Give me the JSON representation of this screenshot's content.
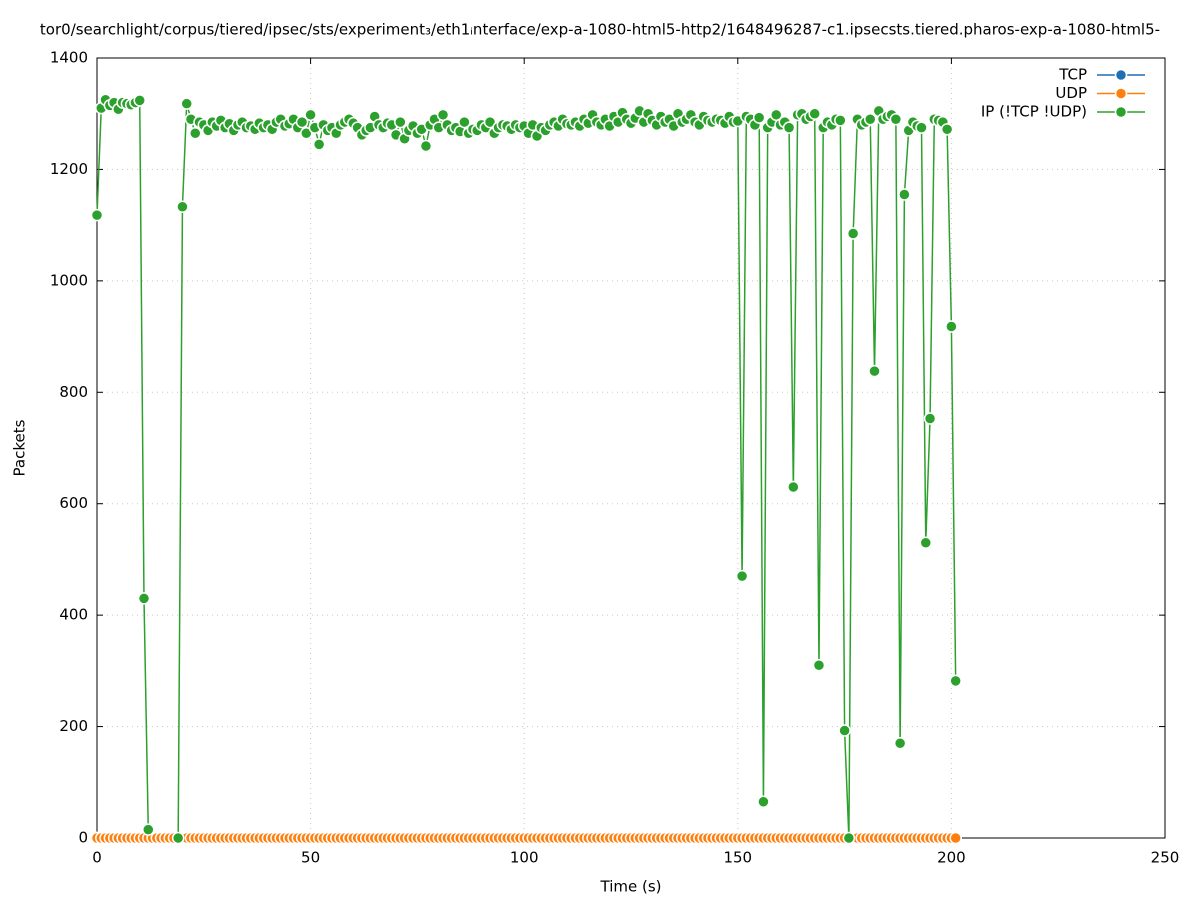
{
  "chart_data": {
    "type": "line",
    "title": "tor0/searchlight/corpus/tiered/ipsec/sts/experiment₃/eth1ᵢnterface/exp-a-1080-html5-http2/1648496287-c1.ipsecsts.tiered.pharos-exp-a-1080-html5-",
    "x_label": "Time (s)",
    "y_label": "Packets",
    "x": [
      0,
      1,
      2,
      3,
      4,
      5,
      6,
      7,
      8,
      9,
      10,
      11,
      12,
      13,
      14,
      15,
      16,
      17,
      18,
      19,
      20,
      21,
      22,
      23,
      24,
      25,
      26,
      27,
      28,
      29,
      30,
      31,
      32,
      33,
      34,
      35,
      36,
      37,
      38,
      39,
      40,
      41,
      42,
      43,
      44,
      45,
      46,
      47,
      48,
      49,
      50,
      51,
      52,
      53,
      54,
      55,
      56,
      57,
      58,
      59,
      60,
      61,
      62,
      63,
      64,
      65,
      66,
      67,
      68,
      69,
      70,
      71,
      72,
      73,
      74,
      75,
      76,
      77,
      78,
      79,
      80,
      81,
      82,
      83,
      84,
      85,
      86,
      87,
      88,
      89,
      90,
      91,
      92,
      93,
      94,
      95,
      96,
      97,
      98,
      99,
      100,
      101,
      102,
      103,
      104,
      105,
      106,
      107,
      108,
      109,
      110,
      111,
      112,
      113,
      114,
      115,
      116,
      117,
      118,
      119,
      120,
      121,
      122,
      123,
      124,
      125,
      126,
      127,
      128,
      129,
      130,
      131,
      132,
      133,
      134,
      135,
      136,
      137,
      138,
      139,
      140,
      141,
      142,
      143,
      144,
      145,
      146,
      147,
      148,
      149,
      150,
      151,
      152,
      153,
      154,
      155,
      156,
      157,
      158,
      159,
      160,
      161,
      162,
      163,
      164,
      165,
      166,
      167,
      168,
      169,
      170,
      171,
      172,
      173,
      174,
      175,
      176,
      177,
      178,
      179,
      180,
      181,
      182,
      183,
      184,
      185,
      186,
      187,
      188,
      189,
      190,
      191,
      192,
      193,
      194,
      195,
      196,
      197,
      198,
      199,
      200,
      201
    ],
    "series": [
      {
        "name": "TCP",
        "color": "#1f6fb4",
        "values": [
          0,
          0,
          0,
          0,
          0,
          0,
          0,
          0,
          0,
          0,
          0,
          0,
          0,
          0,
          0,
          0,
          0,
          0,
          0,
          0,
          0,
          0,
          0,
          0,
          0,
          0,
          0,
          0,
          0,
          0,
          0,
          0,
          0,
          0,
          0,
          0,
          0,
          0,
          0,
          0,
          0,
          0,
          0,
          0,
          0,
          0,
          0,
          0,
          0,
          0,
          0,
          0,
          0,
          0,
          0,
          0,
          0,
          0,
          0,
          0,
          0,
          0,
          0,
          0,
          0,
          0,
          0,
          0,
          0,
          0,
          0,
          0,
          0,
          0,
          0,
          0,
          0,
          0,
          0,
          0,
          0,
          0,
          0,
          0,
          0,
          0,
          0,
          0,
          0,
          0,
          0,
          0,
          0,
          0,
          0,
          0,
          0,
          0,
          0,
          0,
          0,
          0,
          0,
          0,
          0,
          0,
          0,
          0,
          0,
          0,
          0,
          0,
          0,
          0,
          0,
          0,
          0,
          0,
          0,
          0,
          0,
          0,
          0,
          0,
          0,
          0,
          0,
          0,
          0,
          0,
          0,
          0,
          0,
          0,
          0,
          0,
          0,
          0,
          0,
          0,
          0,
          0,
          0,
          0,
          0,
          0,
          0,
          0,
          0,
          0,
          0,
          0,
          0,
          0,
          0,
          0,
          0,
          0,
          0,
          0,
          0,
          0,
          0,
          0,
          0,
          0,
          0,
          0,
          0,
          0,
          0,
          0,
          0,
          0,
          0,
          0,
          0,
          0,
          0,
          0,
          0,
          0,
          0,
          0,
          0,
          0,
          0,
          0,
          0,
          0,
          0,
          0,
          0,
          0,
          0,
          0,
          0,
          0,
          0,
          0,
          0,
          0
        ]
      },
      {
        "name": "UDP",
        "color": "#ff7f0e",
        "values": [
          0,
          0,
          0,
          0,
          0,
          0,
          0,
          0,
          0,
          0,
          0,
          0,
          0,
          0,
          0,
          0,
          0,
          0,
          0,
          0,
          0,
          0,
          0,
          0,
          0,
          0,
          0,
          0,
          0,
          0,
          0,
          0,
          0,
          0,
          0,
          0,
          0,
          0,
          0,
          0,
          0,
          0,
          0,
          0,
          0,
          0,
          0,
          0,
          0,
          0,
          0,
          0,
          0,
          0,
          0,
          0,
          0,
          0,
          0,
          0,
          0,
          0,
          0,
          0,
          0,
          0,
          0,
          0,
          0,
          0,
          0,
          0,
          0,
          0,
          0,
          0,
          0,
          0,
          0,
          0,
          0,
          0,
          0,
          0,
          0,
          0,
          0,
          0,
          0,
          0,
          0,
          0,
          0,
          0,
          0,
          0,
          0,
          0,
          0,
          0,
          0,
          0,
          0,
          0,
          0,
          0,
          0,
          0,
          0,
          0,
          0,
          0,
          0,
          0,
          0,
          0,
          0,
          0,
          0,
          0,
          0,
          0,
          0,
          0,
          0,
          0,
          0,
          0,
          0,
          0,
          0,
          0,
          0,
          0,
          0,
          0,
          0,
          0,
          0,
          0,
          0,
          0,
          0,
          0,
          0,
          0,
          0,
          0,
          0,
          0,
          0,
          0,
          0,
          0,
          0,
          0,
          0,
          0,
          0,
          0,
          0,
          0,
          0,
          0,
          0,
          0,
          0,
          0,
          0,
          0,
          0,
          0,
          0,
          0,
          0,
          0,
          0,
          0,
          0,
          0,
          0,
          0,
          0,
          0,
          0,
          0,
          0,
          0,
          0,
          0,
          0,
          0,
          0,
          0,
          0,
          0,
          0,
          0,
          0,
          0,
          0,
          0
        ]
      },
      {
        "name": "IP (!TCP  !UDP)",
        "color": "#2ca02c",
        "values": [
          1118,
          1310,
          1325,
          1315,
          1320,
          1308,
          1320,
          1318,
          1316,
          1320,
          1324,
          430,
          15,
          null,
          null,
          null,
          null,
          null,
          null,
          0,
          1133,
          1318,
          1290,
          1265,
          1285,
          1280,
          1270,
          1285,
          1278,
          1288,
          1275,
          1282,
          1270,
          1280,
          1285,
          1275,
          1278,
          1272,
          1283,
          1275,
          1280,
          1272,
          1285,
          1290,
          1278,
          1282,
          1290,
          1275,
          1285,
          1265,
          1298,
          1275,
          1245,
          1280,
          1270,
          1275,
          1265,
          1280,
          1285,
          1290,
          1283,
          1275,
          1262,
          1270,
          1275,
          1295,
          1280,
          1275,
          1283,
          1280,
          1262,
          1285,
          1255,
          1270,
          1278,
          1265,
          1272,
          1242,
          1280,
          1290,
          1275,
          1298,
          1280,
          1270,
          1275,
          1268,
          1285,
          1265,
          1272,
          1270,
          1280,
          1275,
          1285,
          1265,
          1275,
          1280,
          1278,
          1272,
          1280,
          1275,
          1278,
          1265,
          1280,
          1260,
          1275,
          1270,
          1280,
          1285,
          1278,
          1290,
          1282,
          1280,
          1285,
          1278,
          1290,
          1283,
          1298,
          1285,
          1280,
          1290,
          1278,
          1295,
          1285,
          1302,
          1290,
          1283,
          1292,
          1305,
          1285,
          1300,
          1288,
          1280,
          1295,
          1285,
          1290,
          1278,
          1300,
          1285,
          1290,
          1298,
          1285,
          1280,
          1295,
          1288,
          1285,
          1290,
          1288,
          1283,
          1295,
          1285,
          1287,
          470,
          1295,
          1290,
          1280,
          1293,
          65,
          1275,
          1285,
          1298,
          1280,
          1285,
          1275,
          630,
          1298,
          1300,
          1290,
          1295,
          1300,
          310,
          1275,
          1285,
          1280,
          1290,
          1288,
          193,
          0,
          1085,
          1290,
          1280,
          1285,
          1290,
          838,
          1305,
          1290,
          1295,
          1298,
          1290,
          170,
          1155,
          1270,
          1285,
          1278,
          1275,
          530,
          753,
          1290,
          1288,
          1285,
          1272,
          918,
          282
        ]
      }
    ],
    "xlim": [
      0,
      250
    ],
    "xticks": [
      0,
      50,
      100,
      150,
      200,
      250
    ],
    "ylim": [
      0,
      1400
    ],
    "yticks": [
      0,
      200,
      400,
      600,
      800,
      1000,
      1200,
      1400
    ],
    "grid": true,
    "legend": "top-right"
  }
}
